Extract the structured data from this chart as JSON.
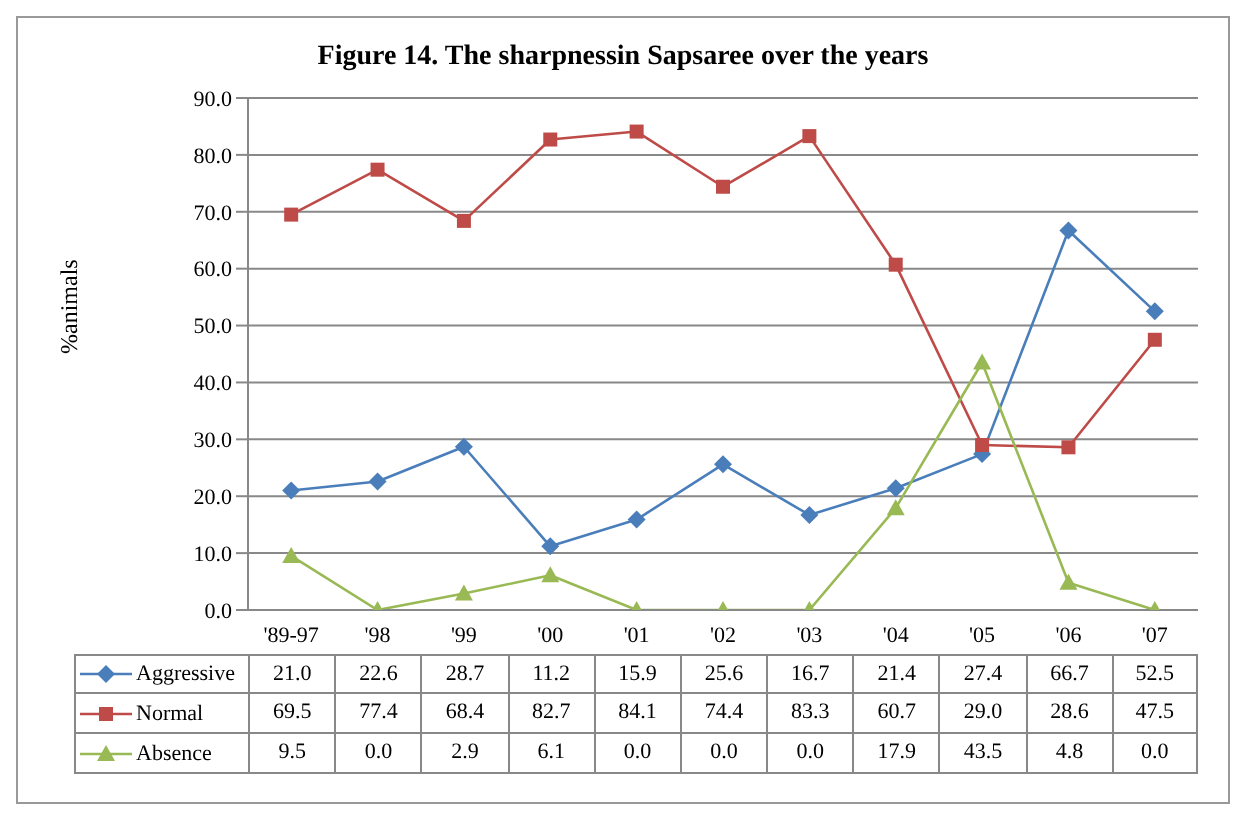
{
  "chart_data": {
    "type": "line",
    "title": "Figure 14. The sharpnessin Sapsaree over the years",
    "ylabel": "%animals",
    "categories": [
      "'89-97",
      "'98",
      "'99",
      "'00",
      "'01",
      "'02",
      "'03",
      "'04",
      "'05",
      "'06",
      "'07"
    ],
    "series": [
      {
        "name": "Aggressive",
        "color": "#4a7ebb",
        "marker": "diamond",
        "values": [
          21.0,
          22.6,
          28.7,
          11.2,
          15.9,
          25.6,
          16.7,
          21.4,
          27.4,
          66.7,
          52.5
        ],
        "value_labels": [
          "21.0",
          "22.6",
          "28.7",
          "11.2",
          "15.9",
          "25.6",
          "16.7",
          "21.4",
          "27.4",
          "66.7",
          "52.5"
        ]
      },
      {
        "name": "Normal",
        "color": "#be4b48",
        "marker": "square",
        "values": [
          69.5,
          77.4,
          68.4,
          82.7,
          84.1,
          74.4,
          83.3,
          60.7,
          29.0,
          28.6,
          47.5
        ],
        "value_labels": [
          "69.5",
          "77.4",
          "68.4",
          "82.7",
          "84.1",
          "74.4",
          "83.3",
          "60.7",
          "29.0",
          "28.6",
          "47.5"
        ]
      },
      {
        "name": "Absence",
        "color": "#98b954",
        "marker": "triangle",
        "values": [
          9.5,
          0.0,
          2.9,
          6.1,
          0.0,
          0.0,
          0.0,
          17.9,
          43.5,
          4.8,
          0.0
        ],
        "value_labels": [
          "9.5",
          "0.0",
          "2.9",
          "6.1",
          "0.0",
          "0.0",
          "0.0",
          "17.9",
          "43.5",
          "4.8",
          "0.0"
        ]
      }
    ],
    "ylim": [
      0,
      90
    ],
    "yticks": [
      {
        "value": 0,
        "label": "0.0"
      },
      {
        "value": 10,
        "label": "10.0"
      },
      {
        "value": 20,
        "label": "20.0"
      },
      {
        "value": 30,
        "label": "30.0"
      },
      {
        "value": 40,
        "label": "40.0"
      },
      {
        "value": 50,
        "label": "50.0"
      },
      {
        "value": 60,
        "label": "60.0"
      },
      {
        "value": 70,
        "label": "70.0"
      },
      {
        "value": 80,
        "label": "80.0"
      },
      {
        "value": 90,
        "label": "90.0"
      }
    ],
    "grid": "y",
    "legend": "bottom",
    "line_style": "solid"
  }
}
